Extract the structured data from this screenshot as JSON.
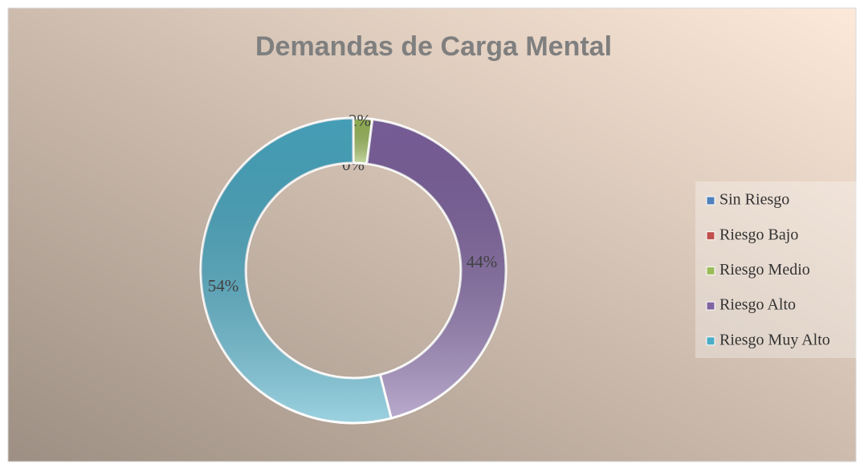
{
  "chart_data": {
    "type": "donut",
    "title": "Demandas de Carga Mental",
    "categories": [
      "Sin Riesgo",
      "Riesgo Bajo",
      "Riesgo Medio",
      "Riesgo Alto",
      "Riesgo Muy Alto"
    ],
    "values": [
      0,
      0,
      2,
      44,
      54
    ],
    "value_labels": [
      "0%",
      "0%",
      "2%",
      "44%",
      "54%"
    ],
    "colors": [
      "#4f81bd",
      "#c0504d",
      "#9bbb59",
      "#8064a2",
      "#4bacc6"
    ],
    "legend": "right"
  }
}
